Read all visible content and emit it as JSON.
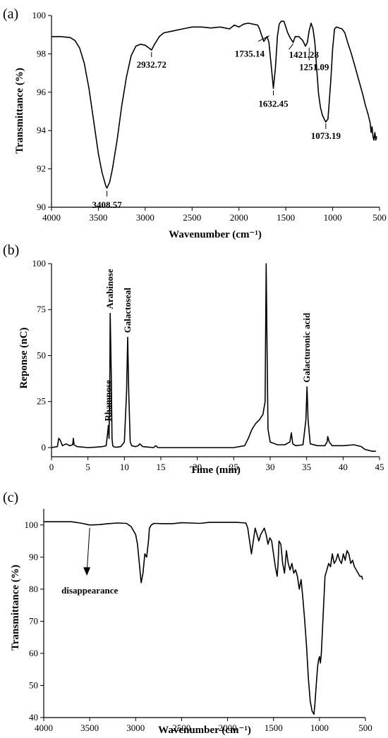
{
  "chart_data": [
    {
      "panel": "(a)",
      "type": "line",
      "xlabel": "Wavenumber (cm⁻¹)",
      "ylabel": "Transmittance (%)",
      "xlim": [
        4000,
        500
      ],
      "ylim": [
        90,
        100
      ],
      "x_ticks": [
        4000,
        3500,
        3000,
        2500,
        2000,
        1500,
        1000,
        500
      ],
      "y_ticks": [
        90,
        92,
        94,
        96,
        98,
        100
      ],
      "series": [
        {
          "x": [
            4000,
            3900,
            3800,
            3750,
            3700,
            3650,
            3600,
            3550,
            3500,
            3460,
            3420,
            3408.57,
            3380,
            3350,
            3300,
            3250,
            3200,
            3150,
            3100,
            3050,
            3000,
            2960,
            2932.72,
            2900,
            2850,
            2800,
            2700,
            2600,
            2500,
            2400,
            2300,
            2200,
            2100,
            2050,
            2000,
            1950,
            1900,
            1850,
            1800,
            1780,
            1760,
            1735.14,
            1700,
            1680,
            1660,
            1640,
            1632.45,
            1610,
            1590,
            1570,
            1550,
            1520,
            1500,
            1480,
            1450,
            1421.28,
            1400,
            1360,
            1320,
            1290,
            1270,
            1251.09,
            1230,
            1210,
            1190,
            1170,
            1150,
            1130,
            1110,
            1090,
            1073.19,
            1050,
            1020,
            1000,
            980,
            960,
            930,
            900,
            870,
            840,
            800,
            760,
            720,
            680,
            650,
            620,
            600,
            590,
            580,
            570,
            560,
            550,
            540,
            530
          ],
          "y": [
            98.9,
            98.9,
            98.85,
            98.7,
            98.3,
            97.5,
            96.2,
            94.5,
            92.8,
            91.8,
            91.1,
            91.0,
            91.3,
            92.0,
            93.5,
            95.3,
            96.8,
            97.9,
            98.4,
            98.5,
            98.45,
            98.3,
            98.2,
            98.5,
            98.9,
            99.1,
            99.2,
            99.3,
            99.4,
            99.4,
            99.35,
            99.4,
            99.3,
            99.5,
            99.4,
            99.55,
            99.6,
            99.55,
            99.5,
            99.3,
            99.0,
            98.65,
            98.9,
            98.6,
            97.6,
            96.6,
            96.2,
            97.3,
            98.9,
            99.55,
            99.7,
            99.7,
            99.4,
            99.1,
            98.8,
            98.6,
            98.9,
            98.9,
            98.7,
            98.4,
            98.6,
            99.2,
            99.6,
            99.3,
            98.6,
            97.2,
            95.9,
            95.2,
            94.8,
            94.6,
            94.45,
            94.6,
            96.6,
            98.3,
            99.3,
            99.4,
            99.35,
            99.3,
            99.1,
            98.6,
            98.0,
            97.3,
            96.6,
            95.9,
            95.3,
            94.8,
            94.4,
            93.9,
            94.2,
            93.7,
            93.5,
            93.9,
            93.5,
            93.7
          ]
        }
      ],
      "annotations": [
        {
          "text": "3408.57",
          "x": 3408.57,
          "y": 91.0
        },
        {
          "text": "2932.72",
          "x": 2932.72,
          "y": 98.2
        },
        {
          "text": "1735.14",
          "x": 1735.14,
          "y": 98.65
        },
        {
          "text": "1632.45",
          "x": 1632.45,
          "y": 96.2
        },
        {
          "text": "1421.28",
          "x": 1421.28,
          "y": 98.6
        },
        {
          "text": "1251.09",
          "x": 1251.09,
          "y": 98.4
        },
        {
          "text": "1073.19",
          "x": 1073.19,
          "y": 94.45
        }
      ]
    },
    {
      "panel": "(b)",
      "type": "line",
      "xlabel": "Time (min)",
      "ylabel": "Reponse (nC)",
      "xlim": [
        0,
        45
      ],
      "ylim": [
        -5,
        100
      ],
      "x_ticks": [
        0,
        5,
        10,
        15,
        20,
        25,
        30,
        35,
        40,
        45
      ],
      "y_ticks": [
        0,
        25,
        50,
        75,
        100
      ],
      "series": [
        {
          "x": [
            0,
            0.8,
            1.0,
            1.2,
            1.5,
            2.0,
            2.5,
            2.9,
            3.0,
            3.1,
            3.5,
            5.0,
            6.0,
            7.0,
            7.5,
            7.7,
            7.8,
            7.9,
            8.0,
            8.05,
            8.2,
            8.3,
            8.4,
            8.6,
            9.0,
            9.5,
            10.0,
            10.3,
            10.45,
            10.6,
            10.8,
            11.0,
            11.5,
            11.9,
            12.1,
            12.5,
            14.0,
            14.3,
            14.6,
            16.0,
            20.0,
            25.0,
            26.5,
            27.0,
            27.5,
            28.0,
            28.5,
            29.0,
            29.3,
            29.45,
            29.55,
            29.7,
            30.0,
            31.0,
            32.0,
            32.7,
            32.9,
            33.1,
            33.5,
            34.5,
            34.9,
            35.05,
            35.2,
            35.5,
            36.5,
            37.5,
            37.8,
            37.9,
            38.1,
            38.5,
            40.0,
            41.5,
            42.5,
            43.0,
            44.0,
            44.5
          ],
          "y": [
            0,
            0.5,
            5,
            4,
            1,
            2,
            1,
            1.5,
            5,
            1.5,
            0.5,
            0,
            0.2,
            0.5,
            1,
            8,
            12,
            5,
            40,
            73,
            40,
            5,
            1,
            0.3,
            0.2,
            0.5,
            3,
            30,
            60,
            30,
            3,
            1,
            0.5,
            1,
            2,
            0.5,
            0,
            1,
            0,
            0,
            0,
            0,
            1,
            5,
            10,
            13,
            15,
            18,
            25,
            100,
            60,
            10,
            3,
            1.5,
            1.5,
            3,
            8,
            2,
            1,
            1.5,
            15,
            33,
            15,
            2,
            1,
            1,
            3,
            6,
            3,
            1,
            1,
            1.5,
            0.5,
            -1,
            -2,
            -2
          ]
        }
      ],
      "annotations": [
        {
          "text": "Rhamnose",
          "x": 7.8,
          "y": 12
        },
        {
          "text": "Arabinose",
          "x": 8.05,
          "y": 73
        },
        {
          "text": "Galactoseal",
          "x": 10.45,
          "y": 60
        },
        {
          "text": "Galacturonic acid",
          "x": 35.05,
          "y": 33
        }
      ]
    },
    {
      "panel": "(c)",
      "type": "line",
      "xlabel": "Wavenumber (cm⁻¹)",
      "ylabel": "Transmittance (%)",
      "xlim": [
        4000,
        500
      ],
      "ylim": [
        40,
        105
      ],
      "x_ticks": [
        4000,
        3500,
        3000,
        2500,
        2000,
        1500,
        1000,
        500
      ],
      "y_ticks": [
        40,
        50,
        60,
        70,
        80,
        90,
        100
      ],
      "series": [
        {
          "x": [
            4000,
            3800,
            3700,
            3600,
            3500,
            3400,
            3300,
            3200,
            3100,
            3050,
            3000,
            2980,
            2960,
            2940,
            2920,
            2900,
            2880,
            2860,
            2850,
            2830,
            2800,
            2700,
            2600,
            2500,
            2400,
            2300,
            2200,
            2100,
            2000,
            1900,
            1800,
            1780,
            1760,
            1740,
            1720,
            1700,
            1680,
            1660,
            1640,
            1620,
            1600,
            1580,
            1560,
            1540,
            1520,
            1500,
            1480,
            1460,
            1450,
            1440,
            1420,
            1400,
            1380,
            1360,
            1340,
            1320,
            1300,
            1280,
            1260,
            1240,
            1220,
            1200,
            1180,
            1160,
            1140,
            1120,
            1100,
            1080,
            1060,
            1050,
            1040,
            1030,
            1020,
            1010,
            1000,
            990,
            980,
            960,
            940,
            920,
            900,
            880,
            860,
            840,
            820,
            800,
            780,
            760,
            740,
            720,
            700,
            680,
            660,
            640,
            620,
            600,
            580,
            560,
            540,
            530
          ],
          "y": [
            101,
            101,
            101,
            100.6,
            100,
            100.1,
            100.4,
            100.6,
            100.5,
            99.5,
            97,
            94,
            88,
            82,
            85,
            91,
            90,
            95,
            99,
            100,
            100.5,
            100.4,
            100.4,
            100.7,
            100.6,
            100.5,
            100.8,
            100.8,
            100.8,
            100.8,
            100.6,
            99,
            95,
            91,
            95,
            99,
            97,
            95,
            97,
            98,
            99,
            97,
            94,
            96,
            95,
            91,
            87,
            84,
            88,
            95,
            94,
            88,
            85,
            92,
            88,
            86,
            88,
            85,
            86,
            84,
            80,
            83,
            77,
            70,
            62,
            52,
            45,
            42,
            41,
            44,
            48,
            52,
            56,
            58,
            59,
            57,
            60,
            72,
            84,
            86,
            88,
            87,
            91,
            88,
            89,
            91,
            89,
            88,
            91,
            89,
            92,
            91,
            88,
            89,
            87,
            86,
            85,
            84,
            84,
            83
          ]
        }
      ],
      "annotations": [
        {
          "text": "disappearance",
          "x": 3500,
          "y": 100
        }
      ]
    }
  ]
}
